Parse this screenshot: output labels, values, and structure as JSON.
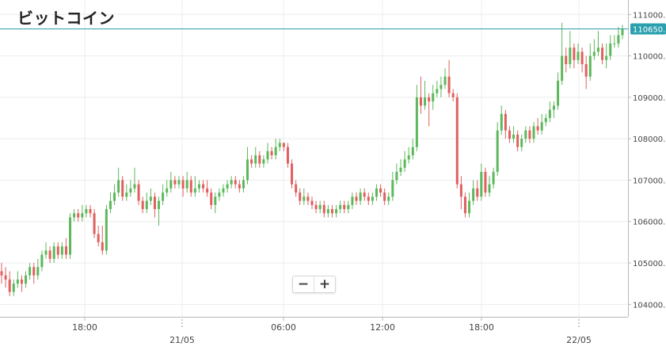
{
  "title": "ビットコイン",
  "zoom": {
    "out_label": "−",
    "in_label": "+"
  },
  "colors": {
    "up": "#5cb85c",
    "down": "#e05f5f",
    "price_line": "#2a9fae",
    "grid": "#ececec"
  },
  "chart_data": {
    "type": "candlestick",
    "title": "ビットコイン",
    "ylim": [
      103700,
      111350
    ],
    "y_ticks": [
      "111000.0",
      "110000.0",
      "109000.0",
      "108000.0",
      "107000.0",
      "106000.0",
      "105000.0",
      "104000.0"
    ],
    "current_price": "110650.8",
    "x_ticks": [
      {
        "time": "18:00",
        "date": ""
      },
      {
        "time": "",
        "date": "21/05"
      },
      {
        "time": "06:00",
        "date": ""
      },
      {
        "time": "12:00",
        "date": ""
      },
      {
        "time": "18:00",
        "date": ""
      },
      {
        "time": "",
        "date": "22/05"
      }
    ],
    "grid": true,
    "candles": [
      [
        104800,
        104700,
        105000,
        104500
      ],
      [
        104700,
        104600,
        104900,
        104400
      ],
      [
        104600,
        104300,
        104800,
        104200
      ],
      [
        104300,
        104500,
        104600,
        104200
      ],
      [
        104500,
        104600,
        104800,
        104400
      ],
      [
        104600,
        104500,
        104700,
        104300
      ],
      [
        104500,
        104700,
        104800,
        104400
      ],
      [
        104700,
        104900,
        105000,
        104600
      ],
      [
        104900,
        104700,
        105000,
        104500
      ],
      [
        104700,
        104900,
        105100,
        104600
      ],
      [
        104900,
        105200,
        105300,
        104800
      ],
      [
        105200,
        105300,
        105500,
        105100
      ],
      [
        105300,
        105100,
        105400,
        105000
      ],
      [
        105100,
        105400,
        105500,
        105000
      ],
      [
        105400,
        105200,
        105500,
        105100
      ],
      [
        105200,
        105400,
        105500,
        105100
      ],
      [
        105400,
        105200,
        105600,
        105100
      ],
      [
        105200,
        106100,
        106200,
        105100
      ],
      [
        106100,
        106200,
        106300,
        106000
      ],
      [
        106200,
        106100,
        106300,
        106000
      ],
      [
        106100,
        106200,
        106400,
        106000
      ],
      [
        106200,
        106300,
        106400,
        106100
      ],
      [
        106300,
        106200,
        106400,
        106100
      ],
      [
        106200,
        105700,
        106300,
        105600
      ],
      [
        105700,
        105500,
        105900,
        105400
      ],
      [
        105500,
        105300,
        105900,
        105200
      ],
      [
        105300,
        106300,
        106400,
        105200
      ],
      [
        106300,
        106500,
        106700,
        106200
      ],
      [
        106500,
        106700,
        106900,
        106400
      ],
      [
        106700,
        107000,
        107300,
        106600
      ],
      [
        107000,
        106600,
        107100,
        106500
      ],
      [
        106600,
        106700,
        106900,
        106500
      ],
      [
        106700,
        106800,
        107000,
        106600
      ],
      [
        106800,
        106900,
        107300,
        106700
      ],
      [
        106900,
        106500,
        107000,
        106400
      ],
      [
        106500,
        106300,
        106600,
        106200
      ],
      [
        106300,
        106500,
        106700,
        106200
      ],
      [
        106500,
        106600,
        106800,
        106400
      ],
      [
        106600,
        106300,
        106700,
        106100
      ],
      [
        106300,
        106500,
        106600,
        105900
      ],
      [
        106500,
        106700,
        106900,
        106400
      ],
      [
        106700,
        106800,
        107000,
        106600
      ],
      [
        106800,
        107000,
        107200,
        106700
      ],
      [
        107000,
        106900,
        107100,
        106800
      ],
      [
        106900,
        107000,
        107100,
        106800
      ],
      [
        107000,
        106800,
        107100,
        106600
      ],
      [
        106800,
        107000,
        107200,
        106700
      ],
      [
        107000,
        106700,
        107100,
        106600
      ],
      [
        106700,
        106800,
        107100,
        106600
      ],
      [
        106800,
        106900,
        107000,
        106700
      ],
      [
        106900,
        106800,
        107000,
        106700
      ],
      [
        106800,
        106700,
        107000,
        106600
      ],
      [
        106700,
        106400,
        106800,
        106300
      ],
      [
        106400,
        106600,
        106700,
        106200
      ],
      [
        106600,
        106700,
        106800,
        106500
      ],
      [
        106700,
        106800,
        106900,
        106600
      ],
      [
        106800,
        106900,
        107000,
        106700
      ],
      [
        106900,
        107000,
        107100,
        106800
      ],
      [
        107000,
        106900,
        107100,
        106800
      ],
      [
        106900,
        106800,
        107000,
        106700
      ],
      [
        106800,
        107000,
        107100,
        106700
      ],
      [
        107000,
        107500,
        107800,
        106900
      ],
      [
        107500,
        107400,
        107600,
        107300
      ],
      [
        107400,
        107600,
        107800,
        107300
      ],
      [
        107600,
        107400,
        107700,
        107300
      ],
      [
        107400,
        107500,
        107600,
        107300
      ],
      [
        107500,
        107700,
        107900,
        107400
      ],
      [
        107700,
        107600,
        107800,
        107500
      ],
      [
        107600,
        107800,
        108000,
        107500
      ],
      [
        107800,
        107900,
        108000,
        107700
      ],
      [
        107900,
        107800,
        107900,
        107700
      ],
      [
        107800,
        107400,
        107900,
        107300
      ],
      [
        107400,
        106900,
        107500,
        106800
      ],
      [
        106900,
        106700,
        107000,
        106600
      ],
      [
        106700,
        106500,
        106800,
        106400
      ],
      [
        106500,
        106600,
        106800,
        106400
      ],
      [
        106600,
        106500,
        106700,
        106400
      ],
      [
        106500,
        106400,
        106600,
        106300
      ],
      [
        106400,
        106300,
        106500,
        106200
      ],
      [
        106300,
        106400,
        106500,
        106200
      ],
      [
        106400,
        106200,
        106500,
        106100
      ],
      [
        106200,
        106300,
        106400,
        106100
      ],
      [
        106300,
        106200,
        106400,
        106100
      ],
      [
        106200,
        106300,
        106400,
        106100
      ],
      [
        106300,
        106400,
        106500,
        106200
      ],
      [
        106400,
        106300,
        106500,
        106200
      ],
      [
        106300,
        106400,
        106500,
        106200
      ],
      [
        106400,
        106600,
        106700,
        106300
      ],
      [
        106600,
        106500,
        106700,
        106400
      ],
      [
        106500,
        106700,
        106800,
        106400
      ],
      [
        106700,
        106600,
        106800,
        106500
      ],
      [
        106600,
        106500,
        106700,
        106400
      ],
      [
        106500,
        106600,
        106700,
        106400
      ],
      [
        106600,
        106800,
        106900,
        106500
      ],
      [
        106800,
        106700,
        106900,
        106600
      ],
      [
        106700,
        106500,
        106800,
        106400
      ],
      [
        106500,
        106600,
        106700,
        106400
      ],
      [
        106600,
        107000,
        107200,
        106500
      ],
      [
        107000,
        107200,
        107400,
        106900
      ],
      [
        107200,
        107300,
        107500,
        107100
      ],
      [
        107300,
        107500,
        107700,
        107200
      ],
      [
        107500,
        107600,
        107800,
        107400
      ],
      [
        107600,
        107800,
        108000,
        107500
      ],
      [
        107800,
        109000,
        109300,
        107700
      ],
      [
        109000,
        108800,
        109500,
        108600
      ],
      [
        108800,
        109000,
        109400,
        108700
      ],
      [
        109000,
        108900,
        109100,
        108300
      ],
      [
        108900,
        109100,
        109300,
        108700
      ],
      [
        109100,
        109200,
        109400,
        109000
      ],
      [
        109200,
        109300,
        109500,
        109000
      ],
      [
        109300,
        109500,
        109700,
        109200
      ],
      [
        109500,
        109100,
        109900,
        109000
      ],
      [
        109100,
        109000,
        109200,
        108900
      ],
      [
        109000,
        106900,
        109100,
        106800
      ],
      [
        106900,
        106600,
        107100,
        106300
      ],
      [
        106600,
        106200,
        106700,
        106100
      ],
      [
        106200,
        106500,
        106700,
        106100
      ],
      [
        106500,
        106800,
        107000,
        106400
      ],
      [
        106800,
        106600,
        107000,
        106500
      ],
      [
        106600,
        107200,
        107400,
        106500
      ],
      [
        107200,
        106700,
        107300,
        106600
      ],
      [
        106700,
        106900,
        107100,
        106600
      ],
      [
        106900,
        107200,
        107300,
        106800
      ],
      [
        107200,
        108200,
        108400,
        107100
      ],
      [
        108200,
        108600,
        108800,
        108100
      ],
      [
        108600,
        108200,
        108700,
        108000
      ],
      [
        108200,
        108000,
        108300,
        107900
      ],
      [
        108000,
        108100,
        108300,
        107900
      ],
      [
        108100,
        107800,
        108200,
        107700
      ],
      [
        107800,
        108000,
        108100,
        107700
      ],
      [
        108000,
        108200,
        108300,
        107900
      ],
      [
        108200,
        108000,
        108300,
        107900
      ],
      [
        108000,
        108300,
        108400,
        107900
      ],
      [
        108300,
        108200,
        108500,
        108100
      ],
      [
        108200,
        108400,
        108600,
        108100
      ],
      [
        108400,
        108500,
        108600,
        108300
      ],
      [
        108500,
        108700,
        108900,
        108400
      ],
      [
        108700,
        108800,
        108900,
        108500
      ],
      [
        108800,
        109400,
        109600,
        108700
      ],
      [
        109400,
        110000,
        110800,
        109300
      ],
      [
        110000,
        109800,
        110200,
        109600
      ],
      [
        109800,
        110200,
        110600,
        109700
      ],
      [
        110200,
        109900,
        110300,
        109700
      ],
      [
        109900,
        110100,
        110300,
        109800
      ],
      [
        110100,
        109800,
        110200,
        109600
      ],
      [
        109800,
        109500,
        110000,
        109200
      ],
      [
        109500,
        110000,
        110300,
        109400
      ],
      [
        110000,
        110100,
        110400,
        109900
      ],
      [
        110100,
        110200,
        110600,
        110000
      ],
      [
        110200,
        109900,
        110300,
        109800
      ],
      [
        109900,
        110000,
        110300,
        109700
      ],
      [
        110000,
        110300,
        110500,
        109900
      ],
      [
        110300,
        110300,
        110500,
        110200
      ],
      [
        110300,
        110500,
        110700,
        110200
      ],
      [
        110500,
        110650,
        110750,
        110400
      ]
    ]
  }
}
